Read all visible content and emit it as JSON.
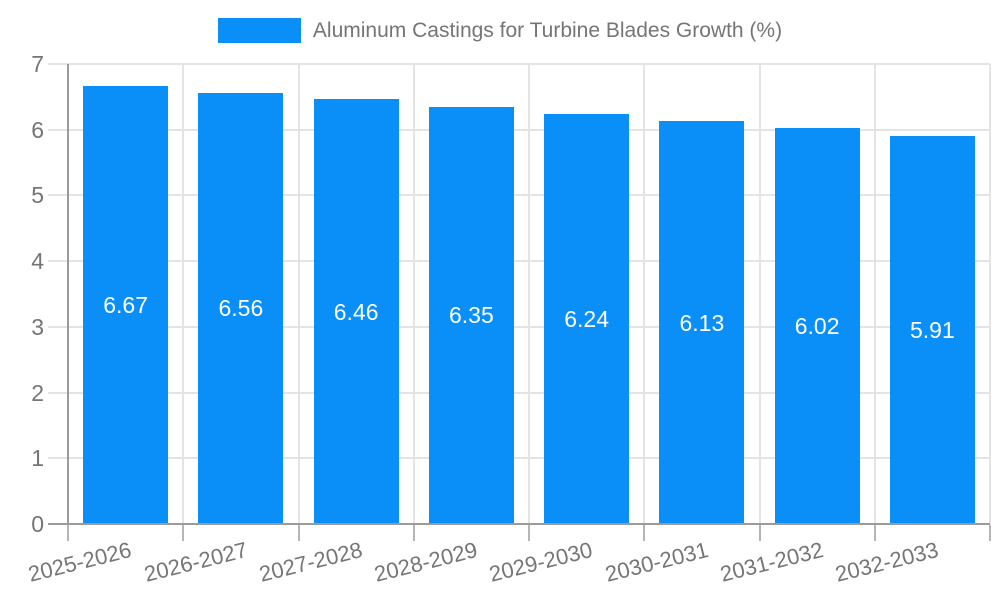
{
  "legend": {
    "label": "Aluminum Castings for Turbine Blades Growth (%)"
  },
  "chart_data": {
    "type": "bar",
    "title": "Aluminum Castings for Turbine Blades Growth (%)",
    "categories": [
      "2025-2026",
      "2026-2027",
      "2027-2028",
      "2028-2029",
      "2029-2030",
      "2030-2031",
      "2031-2032",
      "2032-2033"
    ],
    "values": [
      6.67,
      6.56,
      6.46,
      6.35,
      6.24,
      6.13,
      6.02,
      5.91
    ],
    "value_label_decimals": 2,
    "xlabel": "",
    "ylabel": "",
    "ylim": [
      0,
      7
    ],
    "y_tick_step": 1,
    "grid": true,
    "legend_position": "top",
    "value_labels_inside": true,
    "colors": {
      "bar": "#0A8FF8",
      "value_label": "#FFFFFF",
      "axis_line": "#9B9B9B",
      "grid_line": "#E4E4E4",
      "tick_mark": "#B5B5B5",
      "tick_text": "#757575",
      "legend_text": "#757575",
      "background": "#FFFFFF"
    }
  }
}
